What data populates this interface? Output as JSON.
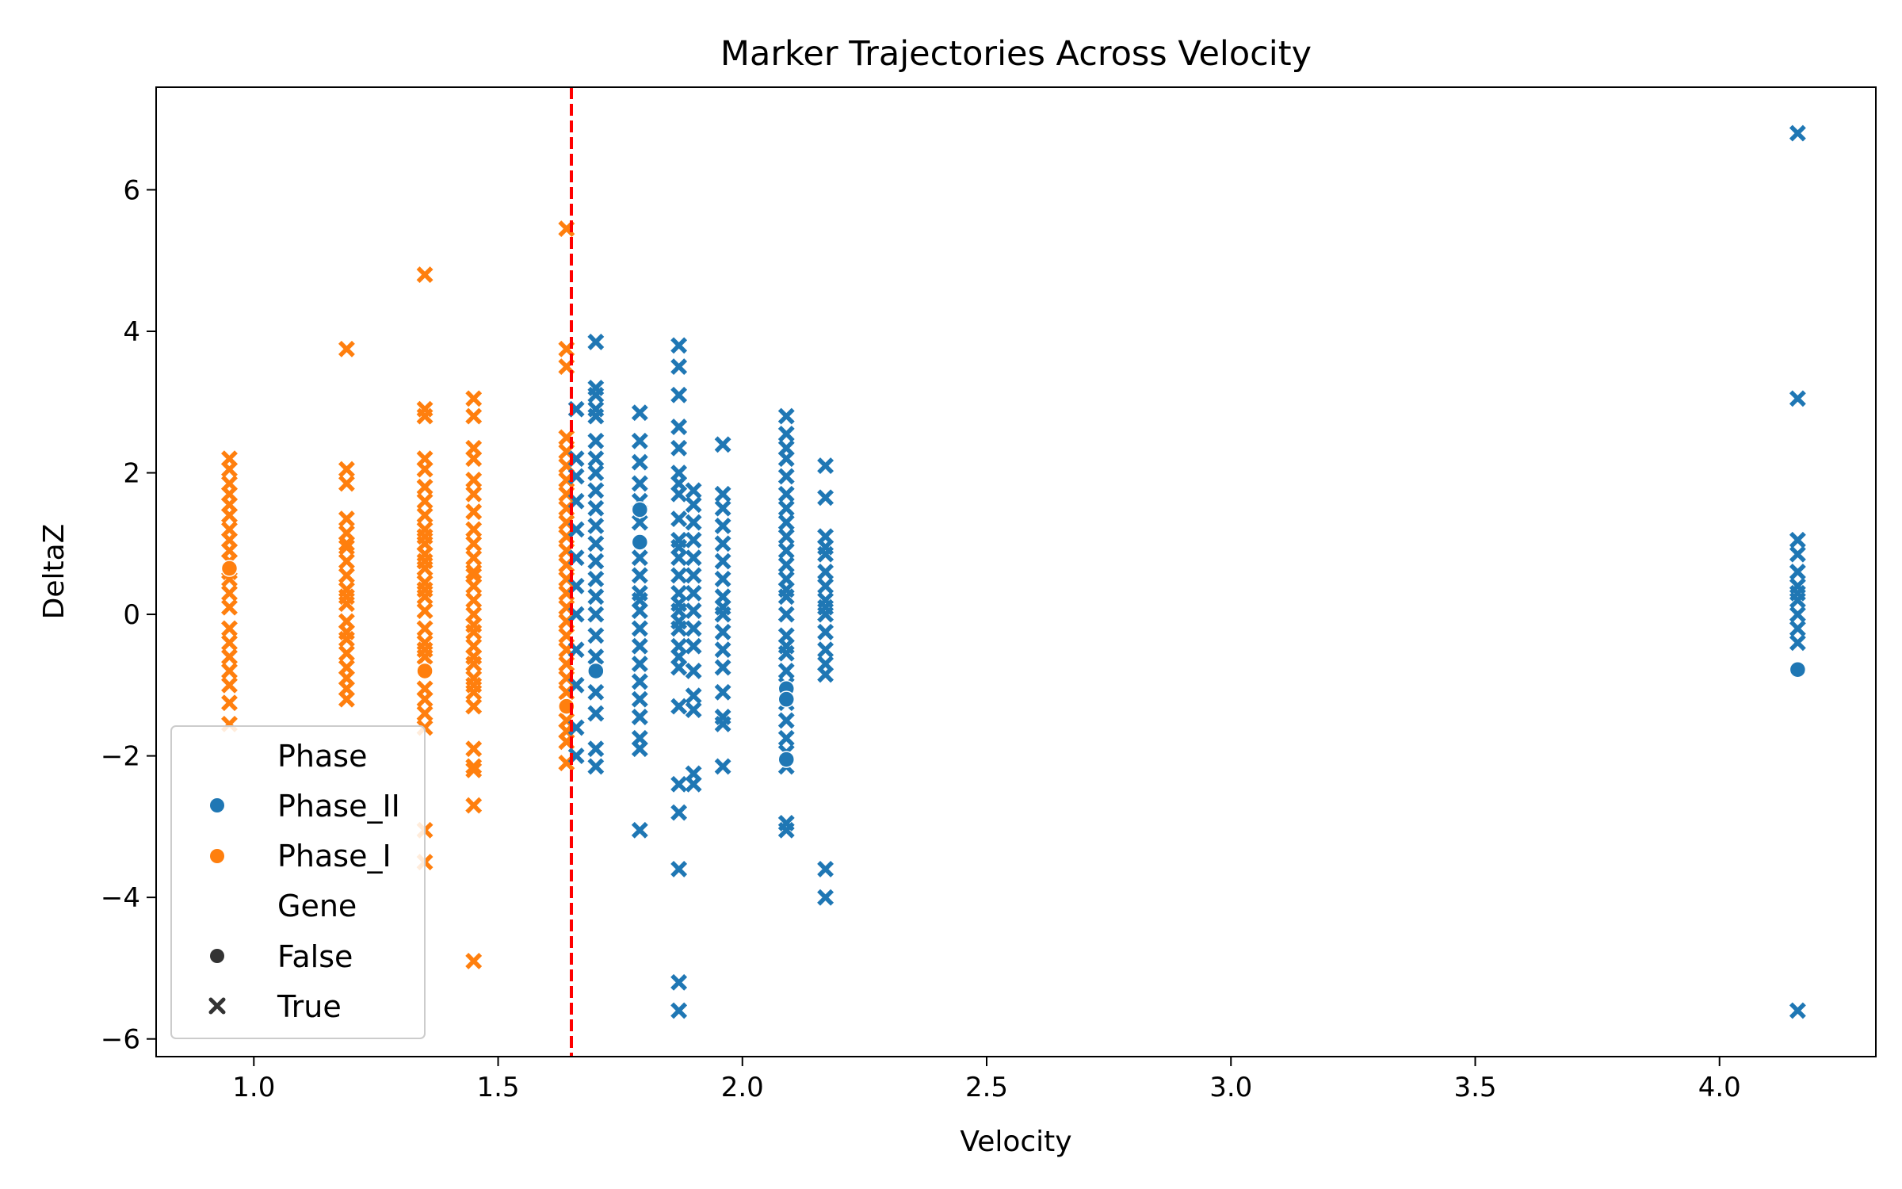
{
  "chart_data": {
    "type": "scatter",
    "title": "Marker Trajectories Across Velocity",
    "xlabel": "Velocity",
    "ylabel": "DeltaZ",
    "xlim": [
      0.8,
      4.32
    ],
    "ylim": [
      -6.25,
      7.45
    ],
    "x_ticks": [
      1.0,
      1.5,
      2.0,
      2.5,
      3.0,
      3.5,
      4.0
    ],
    "x_tick_labels": [
      "1.0",
      "1.5",
      "2.0",
      "2.5",
      "3.0",
      "3.5",
      "4.0"
    ],
    "y_ticks": [
      -6,
      -4,
      -2,
      0,
      2,
      4,
      6
    ],
    "y_tick_labels": [
      "−6",
      "−4",
      "−2",
      "0",
      "2",
      "4",
      "6"
    ],
    "grid": false,
    "vline": {
      "x": 1.65,
      "color": "#ff0000",
      "style": "dashed"
    },
    "legend": {
      "placement": "lower-left",
      "hue_title": "Phase",
      "style_title": "Gene",
      "hue_entries": [
        {
          "label": "Phase_II",
          "color": "#1f77b4"
        },
        {
          "label": "Phase_I",
          "color": "#ff7f0e"
        }
      ],
      "style_entries": [
        {
          "label": "False",
          "marker": "circle"
        },
        {
          "label": "True",
          "marker": "x"
        }
      ]
    },
    "series": [
      {
        "name": "Phase_I",
        "gene": "True",
        "color": "#ff7f0e",
        "marker": "x",
        "x": [
          0.95,
          0.95,
          0.95,
          0.95,
          0.95,
          0.95,
          0.95,
          0.95,
          0.95,
          0.95,
          0.95,
          0.95,
          0.95,
          0.95,
          0.95,
          0.95,
          0.95,
          0.95,
          0.95,
          0.95,
          0.95,
          1.19,
          1.19,
          1.19,
          1.19,
          1.19,
          1.19,
          1.19,
          1.19,
          1.19,
          1.19,
          1.19,
          1.19,
          1.19,
          1.19,
          1.19,
          1.19,
          1.19,
          1.19,
          1.19,
          1.19,
          1.35,
          1.35,
          1.35,
          1.35,
          1.35,
          1.35,
          1.35,
          1.35,
          1.35,
          1.35,
          1.35,
          1.35,
          1.35,
          1.35,
          1.35,
          1.35,
          1.35,
          1.35,
          1.35,
          1.35,
          1.35,
          1.35,
          1.35,
          1.35,
          1.35,
          1.35,
          1.35,
          1.35,
          1.45,
          1.45,
          1.45,
          1.45,
          1.45,
          1.45,
          1.45,
          1.45,
          1.45,
          1.45,
          1.45,
          1.45,
          1.45,
          1.45,
          1.45,
          1.45,
          1.45,
          1.45,
          1.45,
          1.45,
          1.45,
          1.45,
          1.45,
          1.45,
          1.45,
          1.45,
          1.45,
          1.45,
          1.45,
          1.64,
          1.64,
          1.64,
          1.64,
          1.64,
          1.64,
          1.64,
          1.64,
          1.64,
          1.64,
          1.64,
          1.64,
          1.64,
          1.64,
          1.64,
          1.64,
          1.64,
          1.64,
          1.64,
          1.64,
          1.64,
          1.64,
          1.64,
          1.64,
          1.64,
          1.64
        ],
        "y": [
          2.2,
          2.05,
          1.85,
          1.7,
          1.55,
          1.4,
          1.2,
          1.05,
          0.9,
          0.75,
          0.5,
          0.3,
          0.1,
          -0.2,
          -0.4,
          -0.6,
          -0.8,
          -1.0,
          -1.25,
          -1.55,
          0.6,
          3.75,
          2.05,
          1.85,
          1.35,
          1.15,
          0.95,
          0.75,
          0.55,
          0.35,
          0.15,
          -0.1,
          -0.35,
          -0.55,
          -0.75,
          -0.9,
          -1.05,
          -1.2,
          1.0,
          0.25,
          -0.25,
          4.8,
          2.9,
          2.8,
          2.2,
          2.05,
          1.8,
          1.6,
          1.4,
          1.2,
          1.0,
          0.85,
          0.65,
          0.45,
          0.25,
          0.05,
          -0.2,
          -0.4,
          -0.6,
          -1.05,
          -1.4,
          -1.6,
          -3.05,
          -3.5,
          1.1,
          0.35,
          -0.5,
          -1.2,
          0.75,
          3.05,
          2.8,
          2.35,
          2.2,
          1.9,
          1.45,
          1.2,
          1.0,
          0.8,
          0.6,
          0.4,
          0.2,
          0.0,
          -0.25,
          -0.45,
          -0.7,
          -0.9,
          -1.1,
          -1.3,
          -1.9,
          -2.15,
          -2.7,
          -4.9,
          1.7,
          0.55,
          -0.6,
          -1.0,
          -2.2,
          -0.15,
          5.45,
          3.75,
          3.5,
          2.5,
          2.3,
          2.1,
          1.9,
          1.7,
          1.5,
          1.3,
          1.1,
          0.9,
          0.7,
          0.5,
          0.3,
          0.1,
          -0.1,
          -0.3,
          -0.5,
          -0.7,
          -0.9,
          -1.1,
          -1.5,
          -1.65,
          -1.8,
          -2.1
        ]
      },
      {
        "name": "Phase_I",
        "gene": "False",
        "color": "#ff7f0e",
        "marker": "circle",
        "x": [
          0.95,
          1.35,
          1.64
        ],
        "y": [
          0.65,
          -0.8,
          -1.3
        ]
      },
      {
        "name": "Phase_II",
        "gene": "True",
        "color": "#1f77b4",
        "marker": "x",
        "x": [
          1.66,
          1.66,
          1.66,
          1.66,
          1.66,
          1.66,
          1.66,
          1.66,
          1.66,
          1.66,
          1.66,
          1.66,
          1.7,
          1.7,
          1.7,
          1.7,
          1.7,
          1.7,
          1.7,
          1.7,
          1.7,
          1.7,
          1.7,
          1.7,
          1.7,
          1.7,
          1.7,
          1.7,
          1.7,
          1.7,
          1.7,
          1.7,
          1.7,
          1.7,
          1.79,
          1.79,
          1.79,
          1.79,
          1.79,
          1.79,
          1.79,
          1.79,
          1.79,
          1.79,
          1.79,
          1.79,
          1.79,
          1.79,
          1.79,
          1.79,
          1.79,
          1.79,
          1.79,
          1.79,
          1.87,
          1.87,
          1.87,
          1.87,
          1.87,
          1.87,
          1.87,
          1.87,
          1.87,
          1.87,
          1.87,
          1.87,
          1.87,
          1.87,
          1.87,
          1.87,
          1.87,
          1.87,
          1.87,
          1.87,
          1.87,
          1.87,
          1.87,
          1.87,
          1.87,
          1.87,
          1.87,
          1.9,
          1.9,
          1.9,
          1.9,
          1.9,
          1.9,
          1.9,
          1.9,
          1.9,
          1.9,
          1.9,
          1.9,
          1.9,
          1.9,
          1.9,
          1.96,
          1.96,
          1.96,
          1.96,
          1.96,
          1.96,
          1.96,
          1.96,
          1.96,
          1.96,
          1.96,
          1.96,
          1.96,
          1.96,
          1.96,
          1.96,
          1.96,
          2.09,
          2.09,
          2.09,
          2.09,
          2.09,
          2.09,
          2.09,
          2.09,
          2.09,
          2.09,
          2.09,
          2.09,
          2.09,
          2.09,
          2.09,
          2.09,
          2.09,
          2.09,
          2.09,
          2.09,
          2.09,
          2.09,
          2.09,
          2.09,
          2.09,
          2.09,
          2.09,
          2.17,
          2.17,
          2.17,
          2.17,
          2.17,
          2.17,
          2.17,
          2.17,
          2.17,
          2.17,
          2.17,
          2.17,
          2.17,
          2.17,
          2.17,
          2.17,
          4.16,
          4.16,
          4.16,
          4.16,
          4.16,
          4.16,
          4.16,
          4.16,
          4.16,
          4.16,
          4.16,
          4.16
        ],
        "y": [
          2.9,
          2.2,
          1.6,
          1.2,
          0.8,
          0.4,
          0.0,
          -0.5,
          -1.0,
          -1.6,
          -2.0,
          1.95,
          3.85,
          3.2,
          3.1,
          2.9,
          2.8,
          2.45,
          2.2,
          2.0,
          1.75,
          1.5,
          1.25,
          1.0,
          0.75,
          0.5,
          0.25,
          0.0,
          -0.3,
          -0.6,
          -1.1,
          -1.4,
          -1.9,
          -2.15,
          -3.05,
          2.85,
          2.45,
          2.15,
          1.85,
          1.6,
          1.3,
          0.8,
          0.55,
          0.3,
          0.05,
          -0.2,
          -0.45,
          -0.7,
          -0.95,
          -1.2,
          -1.45,
          -1.75,
          -1.9,
          0.2,
          3.8,
          3.5,
          3.1,
          2.65,
          2.35,
          2.0,
          1.7,
          1.35,
          1.05,
          0.8,
          0.55,
          0.3,
          0.05,
          -0.2,
          -0.45,
          -0.75,
          -1.3,
          -2.4,
          -2.8,
          -3.6,
          -5.2,
          -5.6,
          1.85,
          0.95,
          -0.6,
          0.15,
          -0.1,
          1.75,
          1.55,
          1.3,
          1.05,
          0.8,
          0.55,
          0.3,
          0.05,
          -0.2,
          -0.45,
          -0.8,
          -1.15,
          -1.35,
          -2.25,
          -2.4,
          2.4,
          1.7,
          1.5,
          1.25,
          1.0,
          0.75,
          0.5,
          0.25,
          0.0,
          -0.25,
          -0.5,
          -0.75,
          -1.1,
          -1.45,
          -1.55,
          -2.15,
          0.1,
          2.8,
          2.55,
          2.35,
          2.2,
          1.95,
          1.7,
          1.5,
          1.3,
          1.1,
          0.9,
          0.7,
          0.5,
          0.25,
          0.0,
          -0.3,
          -0.55,
          -0.8,
          -1.0,
          -1.25,
          -1.5,
          -1.75,
          -1.95,
          -2.15,
          -2.95,
          -3.05,
          0.35,
          -0.45,
          2.1,
          1.65,
          1.1,
          0.85,
          0.6,
          0.4,
          0.2,
          0.0,
          -0.25,
          -0.5,
          -0.7,
          -0.85,
          -3.6,
          -4.0,
          0.95,
          0.1,
          6.8,
          3.05,
          1.05,
          0.85,
          0.6,
          0.4,
          0.2,
          0.0,
          -0.2,
          -0.4,
          -5.6,
          0.3
        ]
      },
      {
        "name": "Phase_II",
        "gene": "False",
        "color": "#1f77b4",
        "marker": "circle",
        "x": [
          1.7,
          1.79,
          1.79,
          2.09,
          2.09,
          2.09,
          4.16
        ],
        "y": [
          -0.8,
          1.48,
          1.02,
          -1.05,
          -1.2,
          -2.05,
          -0.78
        ]
      }
    ]
  }
}
